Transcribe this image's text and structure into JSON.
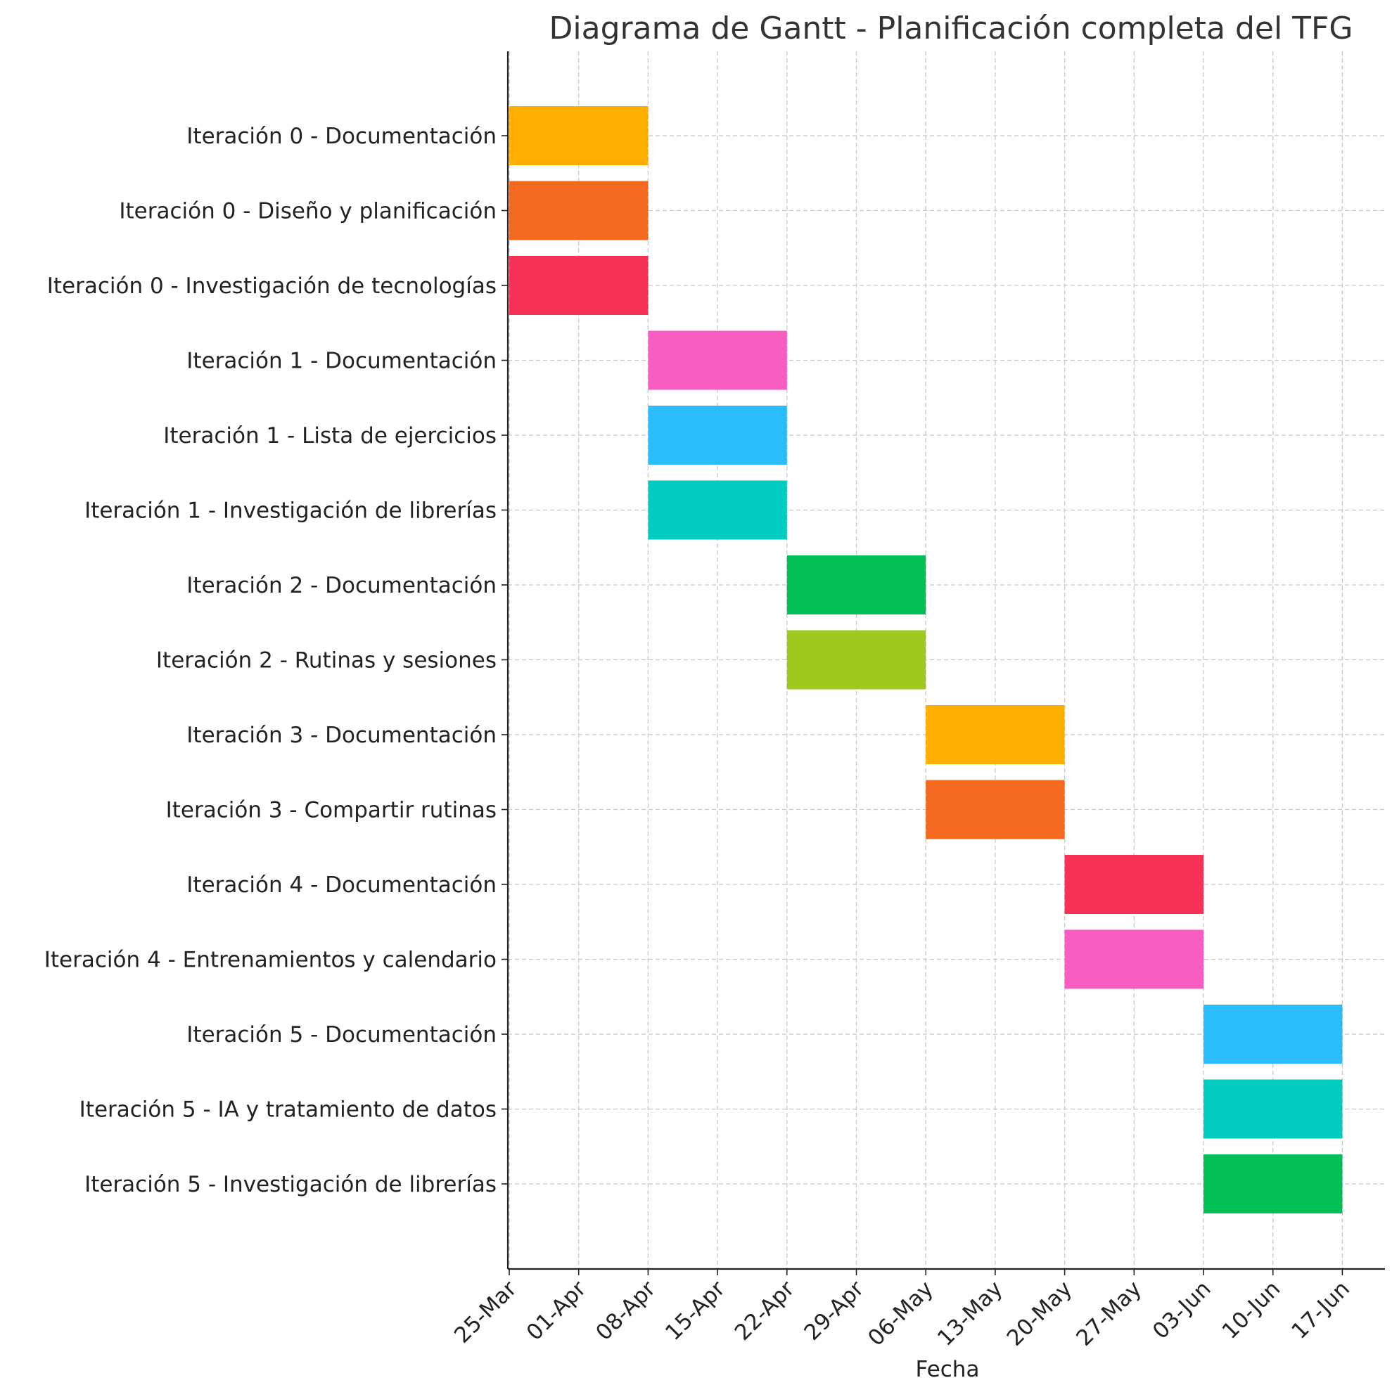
{
  "chart_data": {
    "type": "gantt",
    "title": "Diagrama de Gantt - Planificación completa del TFG",
    "xlabel": "Fecha",
    "ylabel": "",
    "grid": true,
    "x_ticks": [
      "25-Mar",
      "01-Apr",
      "08-Apr",
      "15-Apr",
      "22-Apr",
      "29-Apr",
      "06-May",
      "13-May",
      "20-May",
      "27-May",
      "03-Jun",
      "10-Jun",
      "17-Jun"
    ],
    "xlim": [
      "25-Mar",
      "20-Jun"
    ],
    "tasks": [
      {
        "label": "Iteración 0 - Documentación",
        "start": "25-Mar",
        "end": "08-Apr",
        "color": "#FFAF00"
      },
      {
        "label": "Iteración 0 - Diseño y planificación",
        "start": "25-Mar",
        "end": "08-Apr",
        "color": "#F46920"
      },
      {
        "label": "Iteración 0 - Investigación de tecnologías",
        "start": "25-Mar",
        "end": "08-Apr",
        "color": "#F53255"
      },
      {
        "label": "Iteración 1 - Documentación",
        "start": "08-Apr",
        "end": "22-Apr",
        "color": "#F85DC2"
      },
      {
        "label": "Iteración 1 - Lista de ejercicios",
        "start": "08-Apr",
        "end": "22-Apr",
        "color": "#2ABCFD"
      },
      {
        "label": "Iteración 1 - Investigación de librerías",
        "start": "08-Apr",
        "end": "22-Apr",
        "color": "#00CDBF"
      },
      {
        "label": "Iteración 2 - Documentación",
        "start": "22-Apr",
        "end": "06-May",
        "color": "#00BF55"
      },
      {
        "label": "Iteración 2 - Rutinas y sesiones",
        "start": "22-Apr",
        "end": "06-May",
        "color": "#9ECA1E"
      },
      {
        "label": "Iteración 3 - Documentación",
        "start": "06-May",
        "end": "20-May",
        "color": "#FFAF00"
      },
      {
        "label": "Iteración 3 - Compartir rutinas",
        "start": "06-May",
        "end": "20-May",
        "color": "#F46920"
      },
      {
        "label": "Iteración 4 - Documentación",
        "start": "20-May",
        "end": "03-Jun",
        "color": "#F53255"
      },
      {
        "label": "Iteración 4 - Entrenamientos y calendario",
        "start": "20-May",
        "end": "03-Jun",
        "color": "#F85DC2"
      },
      {
        "label": "Iteración 5 - Documentación",
        "start": "03-Jun",
        "end": "17-Jun",
        "color": "#2ABCFD"
      },
      {
        "label": "Iteración 5 - IA y tratamiento de datos",
        "start": "03-Jun",
        "end": "17-Jun",
        "color": "#00CDBF"
      },
      {
        "label": "Iteración 5 - Investigación de librerías",
        "start": "03-Jun",
        "end": "17-Jun",
        "color": "#00BF55"
      }
    ]
  }
}
